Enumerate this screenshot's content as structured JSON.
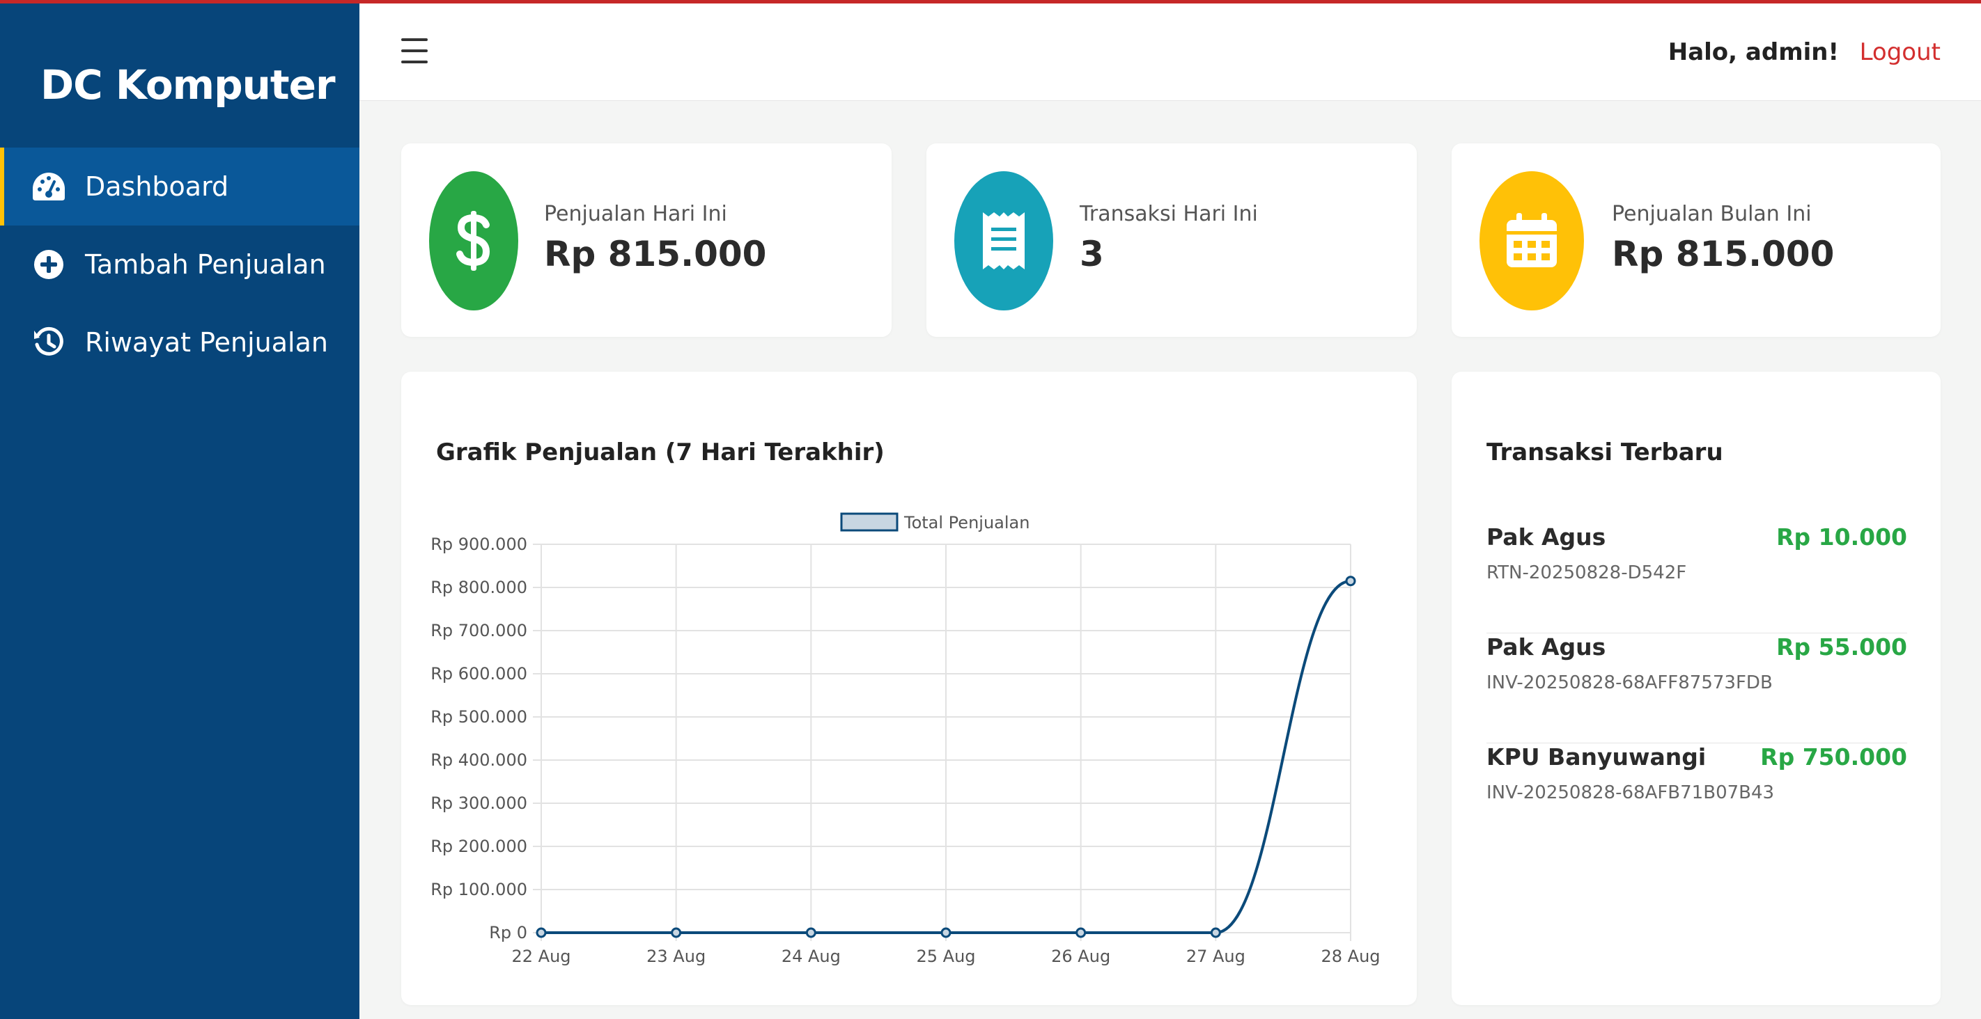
{
  "sidebar": {
    "brand": "DC Komputer",
    "items": [
      {
        "label": "Dashboard",
        "icon": "tachometer-icon",
        "active": true
      },
      {
        "label": "Tambah Penjualan",
        "icon": "plus-circle-icon",
        "active": false
      },
      {
        "label": "Riwayat Penjualan",
        "icon": "history-icon",
        "active": false
      }
    ]
  },
  "header": {
    "greeting": "Halo, admin!",
    "logout_label": "Logout"
  },
  "stats": [
    {
      "label": "Penjualan Hari Ini",
      "value": "Rp 815.000",
      "icon": "dollar-icon",
      "color": "#28a745"
    },
    {
      "label": "Transaksi Hari Ini",
      "value": "3",
      "icon": "receipt-icon",
      "color": "#17a2b8"
    },
    {
      "label": "Penjualan Bulan Ini",
      "value": "Rp 815.000",
      "icon": "calendar-icon",
      "color": "#ffc107"
    }
  ],
  "chart_card": {
    "title": "Grafik Penjualan (7 Hari Terakhir)"
  },
  "chart_data": {
    "type": "line",
    "categories": [
      "22 Aug",
      "23 Aug",
      "24 Aug",
      "25 Aug",
      "26 Aug",
      "27 Aug",
      "28 Aug"
    ],
    "series": [
      {
        "name": "Total Penjualan",
        "values": [
          0,
          0,
          0,
          0,
          0,
          0,
          815000
        ],
        "color": "#0b4a7a"
      }
    ],
    "ylim": [
      0,
      900000
    ],
    "yticks": [
      "Rp 0",
      "Rp 100.000",
      "Rp 200.000",
      "Rp 300.000",
      "Rp 400.000",
      "Rp 500.000",
      "Rp 600.000",
      "Rp 700.000",
      "Rp 800.000",
      "Rp 900.000"
    ],
    "grid": true,
    "legend": "top"
  },
  "recent": {
    "title": "Transaksi Terbaru",
    "items": [
      {
        "name": "Pak Agus",
        "amount": "Rp 10.000",
        "code": "RTN-20250828-D542F"
      },
      {
        "name": "Pak Agus",
        "amount": "Rp 55.000",
        "code": "INV-20250828-68AFF87573FDB"
      },
      {
        "name": "KPU Banyuwangi",
        "amount": "Rp 750.000",
        "code": "INV-20250828-68AFB71B07B43"
      }
    ]
  },
  "colors": {
    "sidebar": "#07457a",
    "sidebar_active": "#0a5899",
    "accent": "#ffc107",
    "logout": "#d32f2f",
    "amount": "#28a745"
  }
}
